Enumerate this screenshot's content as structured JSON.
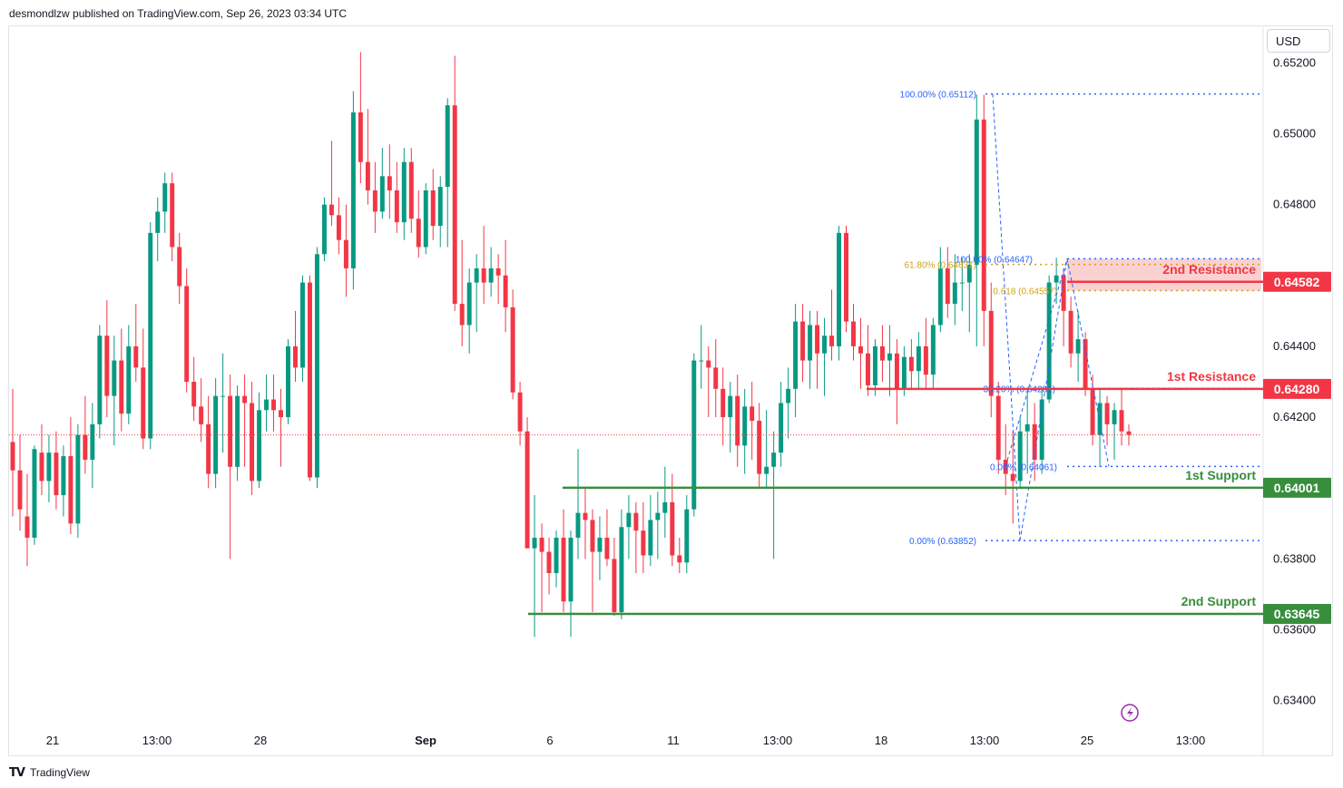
{
  "header": {
    "published_by": "desmondlzw published on TradingView.com, Sep 26, 2023 03:34 UTC"
  },
  "currency_button": {
    "label": "USD"
  },
  "footer": {
    "brand": "TradingView"
  },
  "colors": {
    "up": "#089981",
    "down": "#f23645",
    "resistance": "#f23645",
    "support": "#388e3c",
    "fib": "#2962ff",
    "fib_gold": "#d4a017",
    "zone": "#f9c9c9",
    "text": "#131722",
    "axis_text": "#131722"
  },
  "chart_data": {
    "type": "candlestick",
    "symbol_currency": "USD",
    "y_ticks": [
      "0.65200",
      "0.65000",
      "0.64800",
      "0.64400",
      "0.64200",
      "0.63800",
      "0.63600",
      "0.63400"
    ],
    "x_ticks": [
      {
        "label": "21",
        "bold": false
      },
      {
        "label": "13:00",
        "bold": false
      },
      {
        "label": "28",
        "bold": false
      },
      {
        "label": "Sep",
        "bold": true
      },
      {
        "label": "6",
        "bold": false
      },
      {
        "label": "11",
        "bold": false
      },
      {
        "label": "13:00",
        "bold": false
      },
      {
        "label": "18",
        "bold": false
      },
      {
        "label": "13:00",
        "bold": false
      },
      {
        "label": "25",
        "bold": false
      },
      {
        "label": "13:00",
        "bold": false
      }
    ],
    "ylim": [
      0.6336,
      0.6528
    ],
    "levels": [
      {
        "name": "2nd Resistance",
        "value": 0.64582,
        "price_label": "0.64582",
        "kind": "resistance"
      },
      {
        "name": "1st Resistance",
        "value": 0.6428,
        "price_label": "0.64280",
        "kind": "resistance"
      },
      {
        "name": "1st Support",
        "value": 0.64001,
        "price_label": "0.64001",
        "kind": "support"
      },
      {
        "name": "2nd Support",
        "value": 0.63645,
        "price_label": "0.63645",
        "kind": "support"
      }
    ],
    "fib_labels": [
      {
        "text": "100.00% (0.65112)",
        "value": 0.65112,
        "color": "fib"
      },
      {
        "text": "100.00% (0.64647)",
        "value": 0.64647,
        "color": "fib"
      },
      {
        "text": "61.80% (0.64631)",
        "value": 0.64631,
        "color": "fib_gold"
      },
      {
        "text": "0.618 (0.64557)",
        "value": 0.64557,
        "color": "fib_gold"
      },
      {
        "text": "38.20% (0.64281)",
        "value": 0.64281,
        "color": "fib"
      },
      {
        "text": "0.00% (0.64061)",
        "value": 0.64061,
        "color": "fib"
      },
      {
        "text": "0.00% (0.63852)",
        "value": 0.63852,
        "color": "fib"
      }
    ],
    "candles": [
      {
        "o": 0.6413,
        "h": 0.6428,
        "l": 0.6392,
        "c": 0.6405
      },
      {
        "o": 0.6405,
        "h": 0.6415,
        "l": 0.6388,
        "c": 0.6394
      },
      {
        "o": 0.6392,
        "h": 0.6404,
        "l": 0.6378,
        "c": 0.6386
      },
      {
        "o": 0.6386,
        "h": 0.6412,
        "l": 0.6384,
        "c": 0.6411
      },
      {
        "o": 0.641,
        "h": 0.6418,
        "l": 0.6398,
        "c": 0.6402
      },
      {
        "o": 0.6402,
        "h": 0.6415,
        "l": 0.6396,
        "c": 0.641
      },
      {
        "o": 0.641,
        "h": 0.6416,
        "l": 0.6394,
        "c": 0.6398
      },
      {
        "o": 0.6398,
        "h": 0.6412,
        "l": 0.6392,
        "c": 0.6409
      },
      {
        "o": 0.6409,
        "h": 0.642,
        "l": 0.6387,
        "c": 0.639
      },
      {
        "o": 0.639,
        "h": 0.6418,
        "l": 0.6386,
        "c": 0.6415
      },
      {
        "o": 0.6415,
        "h": 0.6426,
        "l": 0.6404,
        "c": 0.6408
      },
      {
        "o": 0.6408,
        "h": 0.6424,
        "l": 0.64,
        "c": 0.6418
      },
      {
        "o": 0.6418,
        "h": 0.6446,
        "l": 0.6414,
        "c": 0.6443
      },
      {
        "o": 0.6443,
        "h": 0.6453,
        "l": 0.642,
        "c": 0.6426
      },
      {
        "o": 0.6426,
        "h": 0.6443,
        "l": 0.6412,
        "c": 0.6436
      },
      {
        "o": 0.6436,
        "h": 0.6445,
        "l": 0.6416,
        "c": 0.6421
      },
      {
        "o": 0.6421,
        "h": 0.6446,
        "l": 0.6418,
        "c": 0.644
      },
      {
        "o": 0.644,
        "h": 0.6452,
        "l": 0.643,
        "c": 0.6434
      },
      {
        "o": 0.6434,
        "h": 0.6445,
        "l": 0.6411,
        "c": 0.6414
      },
      {
        "o": 0.6414,
        "h": 0.6475,
        "l": 0.6411,
        "c": 0.6472
      },
      {
        "o": 0.6472,
        "h": 0.6482,
        "l": 0.6464,
        "c": 0.6478
      },
      {
        "o": 0.6478,
        "h": 0.6489,
        "l": 0.6472,
        "c": 0.6486
      },
      {
        "o": 0.6486,
        "h": 0.6489,
        "l": 0.6464,
        "c": 0.6468
      },
      {
        "o": 0.6468,
        "h": 0.6472,
        "l": 0.6452,
        "c": 0.6457
      },
      {
        "o": 0.6457,
        "h": 0.6462,
        "l": 0.6427,
        "c": 0.643
      },
      {
        "o": 0.643,
        "h": 0.6437,
        "l": 0.6419,
        "c": 0.6423
      },
      {
        "o": 0.6423,
        "h": 0.6431,
        "l": 0.6413,
        "c": 0.6418
      },
      {
        "o": 0.6418,
        "h": 0.6426,
        "l": 0.64,
        "c": 0.6404
      },
      {
        "o": 0.6404,
        "h": 0.6431,
        "l": 0.64,
        "c": 0.6426
      },
      {
        "o": 0.6426,
        "h": 0.6438,
        "l": 0.641,
        "c": 0.6426
      },
      {
        "o": 0.6426,
        "h": 0.6432,
        "l": 0.638,
        "c": 0.6406
      },
      {
        "o": 0.6406,
        "h": 0.6429,
        "l": 0.6402,
        "c": 0.6426
      },
      {
        "o": 0.6426,
        "h": 0.6432,
        "l": 0.6406,
        "c": 0.6424
      },
      {
        "o": 0.6424,
        "h": 0.643,
        "l": 0.6398,
        "c": 0.6402
      },
      {
        "o": 0.6402,
        "h": 0.6427,
        "l": 0.64,
        "c": 0.6422
      },
      {
        "o": 0.6422,
        "h": 0.6432,
        "l": 0.6416,
        "c": 0.6425
      },
      {
        "o": 0.6425,
        "h": 0.6432,
        "l": 0.6416,
        "c": 0.6422
      },
      {
        "o": 0.6422,
        "h": 0.6428,
        "l": 0.6406,
        "c": 0.642
      },
      {
        "o": 0.642,
        "h": 0.6442,
        "l": 0.6418,
        "c": 0.644
      },
      {
        "o": 0.644,
        "h": 0.645,
        "l": 0.643,
        "c": 0.6434
      },
      {
        "o": 0.6434,
        "h": 0.646,
        "l": 0.643,
        "c": 0.6458
      },
      {
        "o": 0.6458,
        "h": 0.646,
        "l": 0.6402,
        "c": 0.6403
      },
      {
        "o": 0.6403,
        "h": 0.6468,
        "l": 0.64,
        "c": 0.6466
      },
      {
        "o": 0.6466,
        "h": 0.6482,
        "l": 0.6464,
        "c": 0.648
      },
      {
        "o": 0.648,
        "h": 0.6498,
        "l": 0.6474,
        "c": 0.6477
      },
      {
        "o": 0.6477,
        "h": 0.6482,
        "l": 0.6466,
        "c": 0.647
      },
      {
        "o": 0.647,
        "h": 0.648,
        "l": 0.6454,
        "c": 0.6462
      },
      {
        "o": 0.6462,
        "h": 0.6512,
        "l": 0.6456,
        "c": 0.6506
      },
      {
        "o": 0.6506,
        "h": 0.6523,
        "l": 0.6486,
        "c": 0.6492
      },
      {
        "o": 0.6492,
        "h": 0.6507,
        "l": 0.648,
        "c": 0.6484
      },
      {
        "o": 0.6484,
        "h": 0.6492,
        "l": 0.6472,
        "c": 0.6478
      },
      {
        "o": 0.6478,
        "h": 0.6496,
        "l": 0.6476,
        "c": 0.6488
      },
      {
        "o": 0.6488,
        "h": 0.6497,
        "l": 0.6476,
        "c": 0.6484
      },
      {
        "o": 0.6484,
        "h": 0.6492,
        "l": 0.6472,
        "c": 0.6475
      },
      {
        "o": 0.6475,
        "h": 0.6496,
        "l": 0.647,
        "c": 0.6492
      },
      {
        "o": 0.6492,
        "h": 0.6496,
        "l": 0.6472,
        "c": 0.6476
      },
      {
        "o": 0.6476,
        "h": 0.6484,
        "l": 0.6465,
        "c": 0.6468
      },
      {
        "o": 0.6468,
        "h": 0.6486,
        "l": 0.6466,
        "c": 0.6484
      },
      {
        "o": 0.6484,
        "h": 0.649,
        "l": 0.647,
        "c": 0.6474
      },
      {
        "o": 0.6474,
        "h": 0.6488,
        "l": 0.6468,
        "c": 0.6485
      },
      {
        "o": 0.6485,
        "h": 0.651,
        "l": 0.6468,
        "c": 0.6508
      },
      {
        "o": 0.6508,
        "h": 0.6522,
        "l": 0.645,
        "c": 0.6452
      },
      {
        "o": 0.6452,
        "h": 0.647,
        "l": 0.644,
        "c": 0.6446
      },
      {
        "o": 0.6446,
        "h": 0.6462,
        "l": 0.6438,
        "c": 0.6458
      },
      {
        "o": 0.6458,
        "h": 0.6466,
        "l": 0.6444,
        "c": 0.6462
      },
      {
        "o": 0.6462,
        "h": 0.6474,
        "l": 0.6452,
        "c": 0.6458
      },
      {
        "o": 0.6458,
        "h": 0.6468,
        "l": 0.6454,
        "c": 0.6462
      },
      {
        "o": 0.6462,
        "h": 0.6466,
        "l": 0.6452,
        "c": 0.646
      },
      {
        "o": 0.646,
        "h": 0.647,
        "l": 0.6444,
        "c": 0.6451
      },
      {
        "o": 0.6451,
        "h": 0.6456,
        "l": 0.6425,
        "c": 0.6427
      },
      {
        "o": 0.6427,
        "h": 0.643,
        "l": 0.6412,
        "c": 0.6416
      },
      {
        "o": 0.6416,
        "h": 0.642,
        "l": 0.6384,
        "c": 0.6383
      },
      {
        "o": 0.6383,
        "h": 0.6398,
        "l": 0.6358,
        "c": 0.6386
      },
      {
        "o": 0.6386,
        "h": 0.639,
        "l": 0.6365,
        "c": 0.6382
      },
      {
        "o": 0.6382,
        "h": 0.6386,
        "l": 0.637,
        "c": 0.6376
      },
      {
        "o": 0.6376,
        "h": 0.6388,
        "l": 0.6372,
        "c": 0.6386
      },
      {
        "o": 0.6386,
        "h": 0.6394,
        "l": 0.6365,
        "c": 0.6368
      },
      {
        "o": 0.6368,
        "h": 0.6388,
        "l": 0.6358,
        "c": 0.6386
      },
      {
        "o": 0.6386,
        "h": 0.6411,
        "l": 0.638,
        "c": 0.6393
      },
      {
        "o": 0.6393,
        "h": 0.64,
        "l": 0.638,
        "c": 0.6391
      },
      {
        "o": 0.6391,
        "h": 0.6394,
        "l": 0.6365,
        "c": 0.6382
      },
      {
        "o": 0.6382,
        "h": 0.6392,
        "l": 0.6374,
        "c": 0.6386
      },
      {
        "o": 0.6386,
        "h": 0.6394,
        "l": 0.6378,
        "c": 0.638
      },
      {
        "o": 0.638,
        "h": 0.6386,
        "l": 0.6364,
        "c": 0.6365
      },
      {
        "o": 0.6365,
        "h": 0.6394,
        "l": 0.6363,
        "c": 0.6389
      },
      {
        "o": 0.6389,
        "h": 0.6398,
        "l": 0.638,
        "c": 0.6393
      },
      {
        "o": 0.6393,
        "h": 0.6396,
        "l": 0.6376,
        "c": 0.6388
      },
      {
        "o": 0.6388,
        "h": 0.6396,
        "l": 0.6376,
        "c": 0.6381
      },
      {
        "o": 0.6381,
        "h": 0.6398,
        "l": 0.6378,
        "c": 0.6391
      },
      {
        "o": 0.6391,
        "h": 0.6399,
        "l": 0.638,
        "c": 0.6393
      },
      {
        "o": 0.6393,
        "h": 0.6406,
        "l": 0.6386,
        "c": 0.6396
      },
      {
        "o": 0.6396,
        "h": 0.6404,
        "l": 0.6378,
        "c": 0.6381
      },
      {
        "o": 0.6381,
        "h": 0.6386,
        "l": 0.6376,
        "c": 0.6379
      },
      {
        "o": 0.6379,
        "h": 0.6398,
        "l": 0.6376,
        "c": 0.6394
      },
      {
        "o": 0.6394,
        "h": 0.6438,
        "l": 0.6392,
        "c": 0.6436
      },
      {
        "o": 0.6436,
        "h": 0.6446,
        "l": 0.6428,
        "c": 0.6436
      },
      {
        "o": 0.6436,
        "h": 0.644,
        "l": 0.642,
        "c": 0.6434
      },
      {
        "o": 0.6434,
        "h": 0.6442,
        "l": 0.642,
        "c": 0.6428
      },
      {
        "o": 0.6428,
        "h": 0.6434,
        "l": 0.6412,
        "c": 0.642
      },
      {
        "o": 0.642,
        "h": 0.643,
        "l": 0.641,
        "c": 0.6426
      },
      {
        "o": 0.6426,
        "h": 0.6432,
        "l": 0.6406,
        "c": 0.6412
      },
      {
        "o": 0.6412,
        "h": 0.6428,
        "l": 0.6404,
        "c": 0.6423
      },
      {
        "o": 0.6423,
        "h": 0.643,
        "l": 0.6408,
        "c": 0.6419
      },
      {
        "o": 0.6419,
        "h": 0.6424,
        "l": 0.64,
        "c": 0.6404
      },
      {
        "o": 0.6404,
        "h": 0.6422,
        "l": 0.64,
        "c": 0.6406
      },
      {
        "o": 0.6406,
        "h": 0.6416,
        "l": 0.638,
        "c": 0.641
      },
      {
        "o": 0.641,
        "h": 0.643,
        "l": 0.6406,
        "c": 0.6424
      },
      {
        "o": 0.6424,
        "h": 0.6434,
        "l": 0.6414,
        "c": 0.6428
      },
      {
        "o": 0.6428,
        "h": 0.6452,
        "l": 0.642,
        "c": 0.6447
      },
      {
        "o": 0.6447,
        "h": 0.6452,
        "l": 0.643,
        "c": 0.6436
      },
      {
        "o": 0.6436,
        "h": 0.645,
        "l": 0.6428,
        "c": 0.6446
      },
      {
        "o": 0.6446,
        "h": 0.645,
        "l": 0.6428,
        "c": 0.6438
      },
      {
        "o": 0.6438,
        "h": 0.6448,
        "l": 0.6426,
        "c": 0.6443
      },
      {
        "o": 0.6443,
        "h": 0.6456,
        "l": 0.6436,
        "c": 0.644
      },
      {
        "o": 0.644,
        "h": 0.6474,
        "l": 0.6436,
        "c": 0.6472
      },
      {
        "o": 0.6472,
        "h": 0.6474,
        "l": 0.6444,
        "c": 0.6447
      },
      {
        "o": 0.6447,
        "h": 0.6452,
        "l": 0.6436,
        "c": 0.644
      },
      {
        "o": 0.644,
        "h": 0.6448,
        "l": 0.6428,
        "c": 0.6438
      },
      {
        "o": 0.6438,
        "h": 0.6446,
        "l": 0.6426,
        "c": 0.6429
      },
      {
        "o": 0.6429,
        "h": 0.6442,
        "l": 0.6426,
        "c": 0.644
      },
      {
        "o": 0.644,
        "h": 0.6446,
        "l": 0.643,
        "c": 0.6436
      },
      {
        "o": 0.6436,
        "h": 0.6446,
        "l": 0.6426,
        "c": 0.6438
      },
      {
        "o": 0.6438,
        "h": 0.6442,
        "l": 0.6418,
        "c": 0.6428
      },
      {
        "o": 0.6428,
        "h": 0.644,
        "l": 0.6426,
        "c": 0.6437
      },
      {
        "o": 0.6437,
        "h": 0.6442,
        "l": 0.6428,
        "c": 0.6433
      },
      {
        "o": 0.6433,
        "h": 0.6444,
        "l": 0.6428,
        "c": 0.644
      },
      {
        "o": 0.644,
        "h": 0.6448,
        "l": 0.6428,
        "c": 0.6432
      },
      {
        "o": 0.6432,
        "h": 0.6448,
        "l": 0.6428,
        "c": 0.6446
      },
      {
        "o": 0.6446,
        "h": 0.6468,
        "l": 0.6444,
        "c": 0.6462
      },
      {
        "o": 0.6462,
        "h": 0.6468,
        "l": 0.6448,
        "c": 0.6452
      },
      {
        "o": 0.6452,
        "h": 0.6466,
        "l": 0.6446,
        "c": 0.6458
      },
      {
        "o": 0.6458,
        "h": 0.6465,
        "l": 0.645,
        "c": 0.6458
      },
      {
        "o": 0.6458,
        "h": 0.6466,
        "l": 0.6444,
        "c": 0.6463
      },
      {
        "o": 0.6463,
        "h": 0.6511,
        "l": 0.644,
        "c": 0.6504
      },
      {
        "o": 0.6504,
        "h": 0.6511,
        "l": 0.644,
        "c": 0.645
      },
      {
        "o": 0.645,
        "h": 0.6458,
        "l": 0.642,
        "c": 0.6426
      },
      {
        "o": 0.6426,
        "h": 0.643,
        "l": 0.6404,
        "c": 0.6408
      },
      {
        "o": 0.6408,
        "h": 0.6418,
        "l": 0.6398,
        "c": 0.6404
      },
      {
        "o": 0.6404,
        "h": 0.6416,
        "l": 0.639,
        "c": 0.6402
      },
      {
        "o": 0.6402,
        "h": 0.642,
        "l": 0.64,
        "c": 0.6416
      },
      {
        "o": 0.6416,
        "h": 0.6428,
        "l": 0.6404,
        "c": 0.6418
      },
      {
        "o": 0.6418,
        "h": 0.6424,
        "l": 0.6402,
        "c": 0.6408
      },
      {
        "o": 0.6408,
        "h": 0.6428,
        "l": 0.6404,
        "c": 0.6425
      },
      {
        "o": 0.6425,
        "h": 0.646,
        "l": 0.6424,
        "c": 0.6458
      },
      {
        "o": 0.6458,
        "h": 0.6465,
        "l": 0.6452,
        "c": 0.646
      },
      {
        "o": 0.646,
        "h": 0.6462,
        "l": 0.644,
        "c": 0.645
      },
      {
        "o": 0.645,
        "h": 0.6454,
        "l": 0.6434,
        "c": 0.6438
      },
      {
        "o": 0.6438,
        "h": 0.645,
        "l": 0.643,
        "c": 0.6442
      },
      {
        "o": 0.6442,
        "h": 0.6444,
        "l": 0.6426,
        "c": 0.6428
      },
      {
        "o": 0.6428,
        "h": 0.6432,
        "l": 0.6412,
        "c": 0.6415
      },
      {
        "o": 0.6415,
        "h": 0.6428,
        "l": 0.6406,
        "c": 0.6424
      },
      {
        "o": 0.6424,
        "h": 0.6426,
        "l": 0.6412,
        "c": 0.6418
      },
      {
        "o": 0.6418,
        "h": 0.6424,
        "l": 0.6408,
        "c": 0.6422
      },
      {
        "o": 0.6422,
        "h": 0.6428,
        "l": 0.6412,
        "c": 0.6416
      },
      {
        "o": 0.6416,
        "h": 0.6418,
        "l": 0.6412,
        "c": 0.6415
      }
    ]
  }
}
